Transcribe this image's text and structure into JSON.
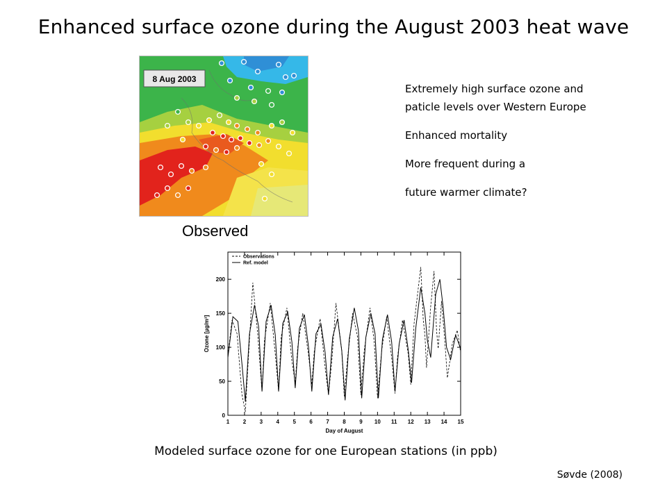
{
  "slide": {
    "title": "Enhanced surface ozone during the August 2003 heat wave",
    "bullets": [
      "Extremely high surface ozone and",
      "paticle levels over Western Europe",
      "Enhanced mortality",
      "More frequent during a",
      "future warmer climate?"
    ],
    "bottom_caption": "Modeled surface ozone for one European stations (in ppb)",
    "credit": "Søvde (2008)"
  },
  "map": {
    "date_label": "8 Aug 2003",
    "caption": "Observed",
    "colors": {
      "ocean_green": "#3cb44a",
      "high_red": "#e2231c",
      "orange": "#f08a1c",
      "yellow": "#f2de2e",
      "cyan_north": "#35b8e8"
    }
  },
  "chart_data": {
    "type": "line",
    "xlabel": "Day of August",
    "ylabel": "Ozone [µg/m³]",
    "xlim": [
      1,
      15
    ],
    "ylim": [
      0,
      240
    ],
    "xticks": [
      1,
      2,
      3,
      4,
      5,
      6,
      7,
      8,
      9,
      10,
      11,
      12,
      13,
      14,
      15
    ],
    "yticks": [
      0,
      50,
      100,
      150,
      200
    ],
    "legend": "top-left",
    "series": [
      {
        "name": "Observations",
        "style": "dashed",
        "x": [
          1.0,
          1.25,
          1.55,
          1.85,
          2.05,
          2.2,
          2.5,
          2.8,
          3.05,
          3.2,
          3.55,
          3.85,
          4.05,
          4.2,
          4.55,
          4.85,
          5.05,
          5.2,
          5.5,
          5.85,
          6.05,
          6.2,
          6.55,
          6.85,
          7.05,
          7.25,
          7.5,
          7.85,
          8.0,
          8.2,
          8.5,
          8.8,
          9.0,
          9.2,
          9.55,
          9.8,
          10.0,
          10.25,
          10.55,
          10.85,
          11.05,
          11.2,
          11.5,
          11.85,
          12.0,
          12.2,
          12.6,
          12.75,
          12.85,
          12.95,
          13.2,
          13.4,
          13.55,
          13.65,
          13.85,
          14.05,
          14.2,
          14.5,
          14.8,
          15.0
        ],
        "y": [
          88,
          140,
          120,
          30,
          5,
          70,
          195,
          118,
          35,
          110,
          165,
          90,
          35,
          115,
          158,
          80,
          48,
          100,
          150,
          88,
          45,
          95,
          142,
          70,
          30,
          80,
          165,
          95,
          28,
          85,
          150,
          115,
          30,
          95,
          158,
          108,
          25,
          95,
          145,
          85,
          32,
          85,
          140,
          90,
          45,
          135,
          218,
          140,
          118,
          70,
          160,
          212,
          125,
          98,
          168,
          108,
          55,
          105,
          125,
          92
        ]
      },
      {
        "name": "Ref. model",
        "style": "solid",
        "x": [
          1.0,
          1.3,
          1.6,
          1.85,
          2.05,
          2.3,
          2.6,
          2.85,
          3.05,
          3.3,
          3.6,
          3.85,
          4.05,
          4.3,
          4.6,
          4.85,
          5.05,
          5.3,
          5.6,
          5.85,
          6.05,
          6.3,
          6.6,
          6.85,
          7.05,
          7.3,
          7.6,
          7.85,
          8.05,
          8.3,
          8.6,
          8.85,
          9.05,
          9.3,
          9.6,
          9.85,
          10.05,
          10.3,
          10.6,
          10.85,
          11.05,
          11.3,
          11.6,
          11.85,
          12.05,
          12.3,
          12.6,
          12.85,
          13.0,
          13.2,
          13.5,
          13.75,
          13.95,
          14.15,
          14.4,
          14.7,
          15.0
        ],
        "y": [
          85,
          145,
          138,
          75,
          20,
          120,
          162,
          130,
          35,
          138,
          162,
          118,
          35,
          135,
          152,
          108,
          40,
          128,
          148,
          100,
          35,
          120,
          134,
          92,
          30,
          115,
          142,
          95,
          22,
          112,
          158,
          125,
          25,
          115,
          150,
          120,
          25,
          112,
          148,
          108,
          35,
          105,
          140,
          96,
          48,
          128,
          188,
          150,
          110,
          85,
          178,
          200,
          158,
          100,
          82,
          118,
          98
        ]
      }
    ]
  }
}
